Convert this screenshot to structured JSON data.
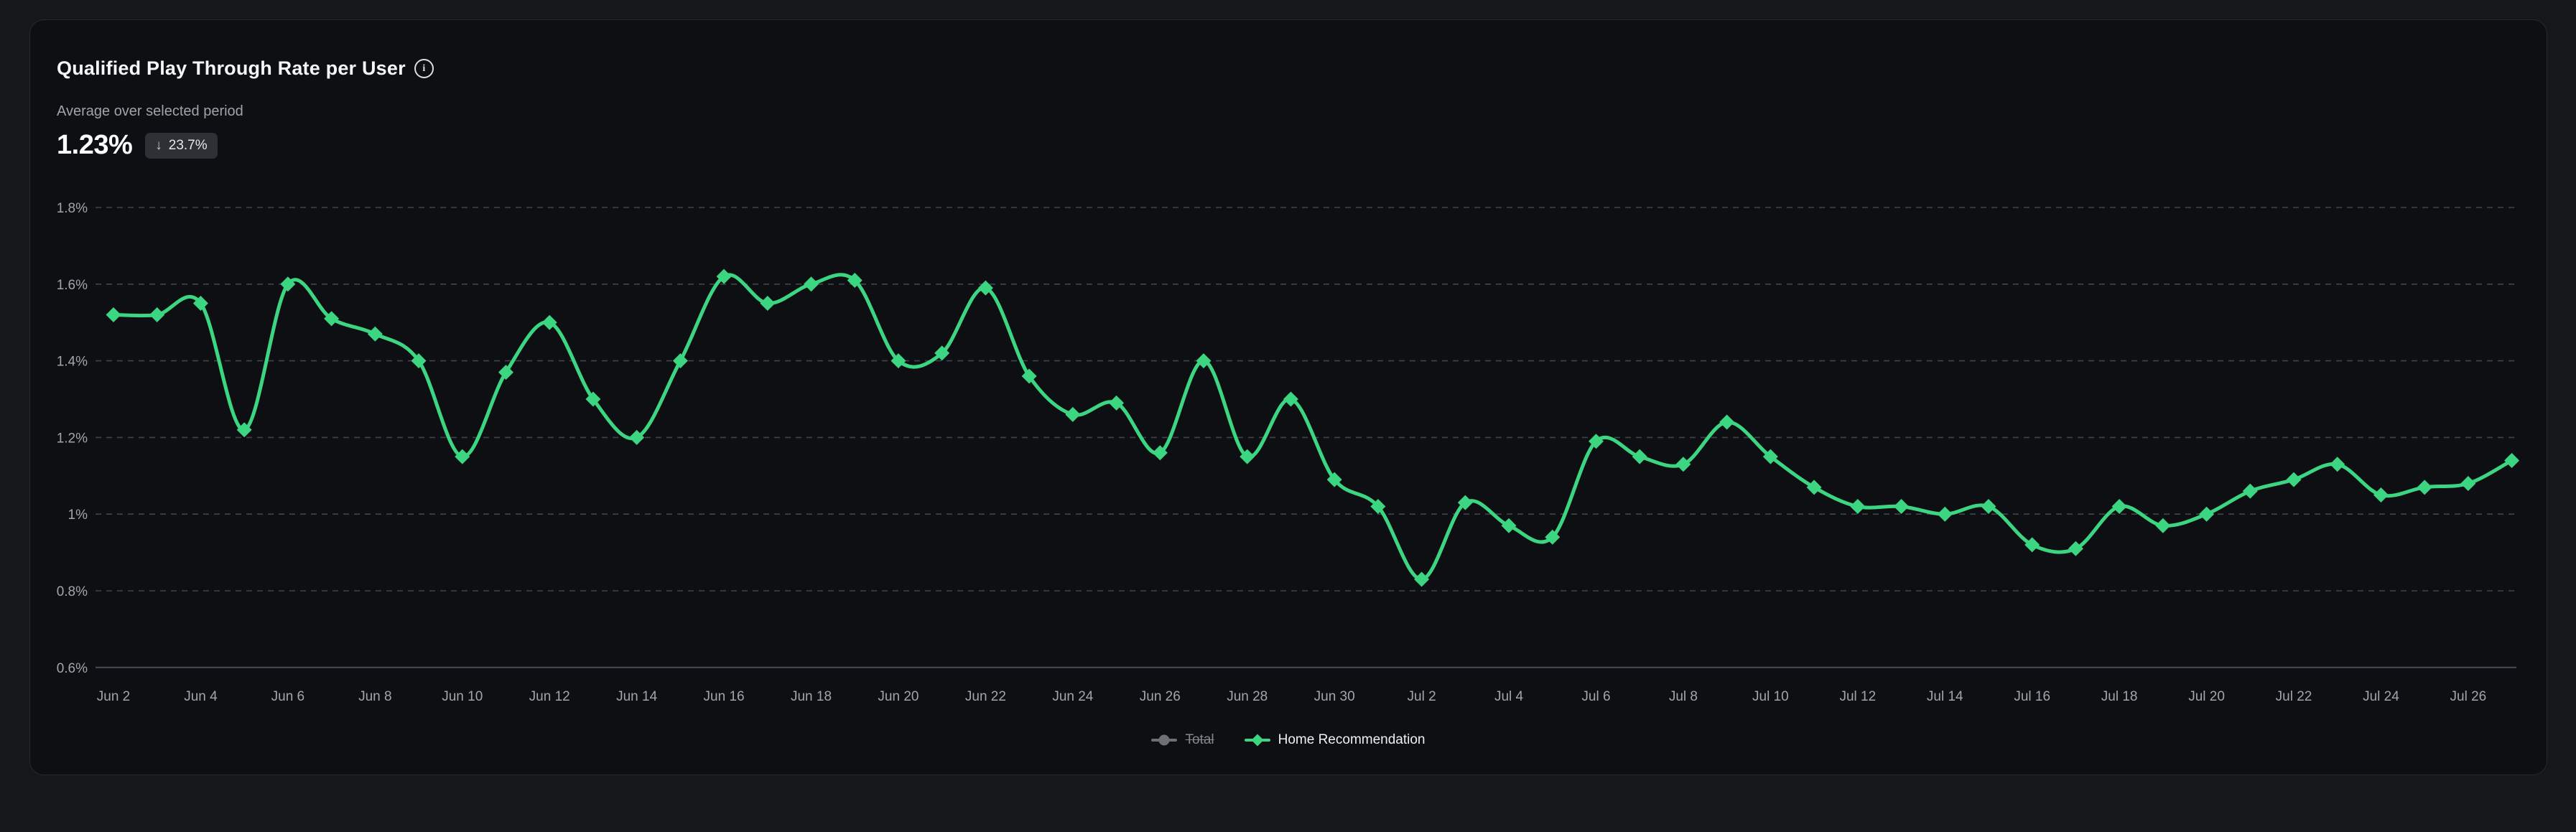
{
  "header": {
    "title": "Qualified Play Through Rate per User",
    "info_icon": "i",
    "subtitle": "Average over selected period",
    "average_value": "1.23%",
    "delta_badge": {
      "direction": "down",
      "arrow": "↓",
      "value": "23.7%"
    }
  },
  "legend": {
    "items": [
      {
        "label": "Total",
        "marker": "circle",
        "color": "#6d7075",
        "disabled": true
      },
      {
        "label": "Home Recommendation",
        "marker": "diamond",
        "color": "#3cd682",
        "disabled": false
      }
    ]
  },
  "colors": {
    "accent_green": "#3cd682",
    "card_background": "#0e0f13",
    "page_background": "#16171b",
    "grid_dashed": "#41444b",
    "axis_line": "#4a4d55",
    "axis_text": "#a2a5aa",
    "disabled_series": "#6d7075"
  },
  "chart_data": {
    "type": "line",
    "title": "Qualified Play Through Rate per User",
    "xlabel": "",
    "ylabel": "",
    "ylim": [
      0.6,
      1.8
    ],
    "grid": "dashed-horizontal",
    "smooth": true,
    "legend_position": "bottom",
    "x": [
      "Jun 2",
      "Jun 3",
      "Jun 4",
      "Jun 5",
      "Jun 6",
      "Jun 7",
      "Jun 8",
      "Jun 9",
      "Jun 10",
      "Jun 11",
      "Jun 12",
      "Jun 13",
      "Jun 14",
      "Jun 15",
      "Jun 16",
      "Jun 17",
      "Jun 18",
      "Jun 19",
      "Jun 20",
      "Jun 21",
      "Jun 22",
      "Jun 23",
      "Jun 24",
      "Jun 25",
      "Jun 26",
      "Jun 27",
      "Jun 28",
      "Jun 29",
      "Jun 30",
      "Jul 1",
      "Jul 2",
      "Jul 3",
      "Jul 4",
      "Jul 5",
      "Jul 6",
      "Jul 7",
      "Jul 8",
      "Jul 9",
      "Jul 10",
      "Jul 11",
      "Jul 12",
      "Jul 13",
      "Jul 14",
      "Jul 15",
      "Jul 16",
      "Jul 17",
      "Jul 18",
      "Jul 19",
      "Jul 20",
      "Jul 21",
      "Jul 22",
      "Jul 23",
      "Jul 24",
      "Jul 25",
      "Jul 26",
      "Jul 27"
    ],
    "x_tick_labels": [
      "Jun 2",
      "Jun 4",
      "Jun 6",
      "Jun 8",
      "Jun 10",
      "Jun 12",
      "Jun 14",
      "Jun 16",
      "Jun 18",
      "Jun 20",
      "Jun 22",
      "Jun 24",
      "Jun 26",
      "Jun 28",
      "Jun 30",
      "Jul 2",
      "Jul 4",
      "Jul 6",
      "Jul 8",
      "Jul 10",
      "Jul 12",
      "Jul 14",
      "Jul 16",
      "Jul 18",
      "Jul 20",
      "Jul 22",
      "Jul 24",
      "Jul 26"
    ],
    "y_ticks": [
      {
        "label": "1.8%",
        "value": 1.8
      },
      {
        "label": "1.6%",
        "value": 1.6
      },
      {
        "label": "1.4%",
        "value": 1.4
      },
      {
        "label": "1.2%",
        "value": 1.2
      },
      {
        "label": "1%",
        "value": 1.0
      },
      {
        "label": "0.8%",
        "value": 0.8
      },
      {
        "label": "0.6%",
        "value": 0.6
      }
    ],
    "series": [
      {
        "name": "Home Recommendation",
        "color": "#3cd682",
        "marker": "diamond",
        "values": [
          1.52,
          1.52,
          1.55,
          1.22,
          1.6,
          1.51,
          1.47,
          1.4,
          1.15,
          1.37,
          1.5,
          1.3,
          1.2,
          1.4,
          1.62,
          1.55,
          1.6,
          1.61,
          1.4,
          1.42,
          1.59,
          1.36,
          1.26,
          1.29,
          1.16,
          1.4,
          1.15,
          1.3,
          1.09,
          1.02,
          0.83,
          1.03,
          0.97,
          0.94,
          1.19,
          1.15,
          1.13,
          1.24,
          1.15,
          1.07,
          1.02,
          1.02,
          1.0,
          1.02,
          0.92,
          0.91,
          1.02,
          0.97,
          1.0,
          1.06,
          1.09,
          1.13,
          1.05,
          1.07,
          1.08,
          1.14
        ]
      },
      {
        "name": "Total",
        "color": "#6d7075",
        "marker": "circle",
        "disabled": true,
        "values": []
      }
    ]
  }
}
